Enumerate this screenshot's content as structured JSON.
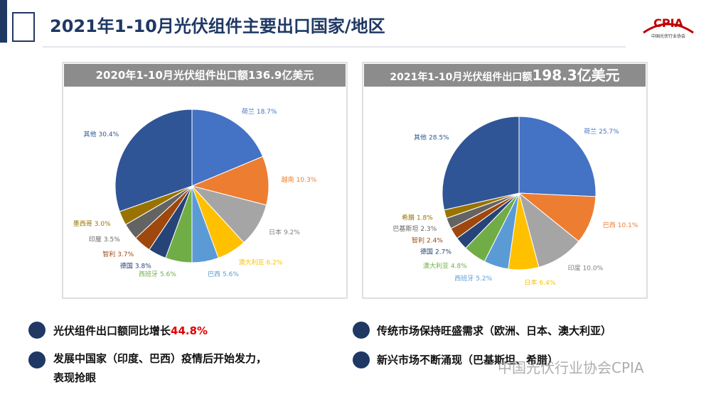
{
  "title": "2021年1-10月光伏组件主要出口国家/地区",
  "logo": {
    "text": "CPIA",
    "subtitle": "中国光伏行业协会"
  },
  "chart_data": [
    {
      "type": "pie",
      "title": "2020年1-10月光伏组件出口额136.9亿美元",
      "categories": [
        "荷兰",
        "越南",
        "日本",
        "澳大利亚",
        "巴西",
        "西班牙",
        "德国",
        "智利",
        "印度",
        "墨西哥",
        "其他"
      ],
      "values": [
        18.7,
        10.3,
        9.2,
        6.2,
        5.6,
        5.6,
        3.8,
        3.7,
        3.5,
        3.0,
        30.4
      ],
      "value_labels": [
        "18.7%",
        "10.3%",
        "9.2%",
        "6.2%",
        "5.6%",
        "5.6%",
        "3.8%",
        "3.7%",
        "3.5%",
        "3.0%",
        "30.4%"
      ],
      "colors": [
        "#4472c4",
        "#ed7d31",
        "#a5a5a5",
        "#ffc000",
        "#5b9bd5",
        "#70ad47",
        "#264478",
        "#9e480e",
        "#636363",
        "#997300",
        "#2f5597"
      ]
    },
    {
      "type": "pie",
      "title": "2021年1-10月光伏组件出口额",
      "title_highlight": "198.3亿美元",
      "categories": [
        "荷兰",
        "巴西",
        "印度",
        "日本",
        "西班牙",
        "澳大利亚",
        "德国",
        "智利",
        "巴基斯坦",
        "希腊",
        "其他"
      ],
      "values": [
        25.7,
        10.1,
        10.0,
        6.4,
        5.2,
        4.8,
        2.7,
        2.4,
        2.3,
        1.8,
        28.5
      ],
      "value_labels": [
        "25.7%",
        "10.1%",
        "10.0%",
        "6.4%",
        "5.2%",
        "4.8%",
        "2.7%",
        "2.4%",
        "2.3%",
        "1.8%",
        "28.5%"
      ],
      "colors": [
        "#4472c4",
        "#ed7d31",
        "#a5a5a5",
        "#ffc000",
        "#5b9bd5",
        "#70ad47",
        "#264478",
        "#9e480e",
        "#636363",
        "#997300",
        "#2f5597"
      ]
    }
  ],
  "bullets": [
    {
      "text": "光伏组件出口额同比增长",
      "highlight": "44.8%"
    },
    {
      "lines": [
        "发展中国家（印度、巴西）疫情后开始发力，",
        "表现抢眼"
      ]
    },
    {
      "text": "传统市场保持旺盛需求（欧洲、日本、澳大利亚）"
    },
    {
      "text": "新兴市场不断涌现（巴基斯坦、希腊）"
    }
  ],
  "watermark": "中国光伏行业协会CPIA"
}
